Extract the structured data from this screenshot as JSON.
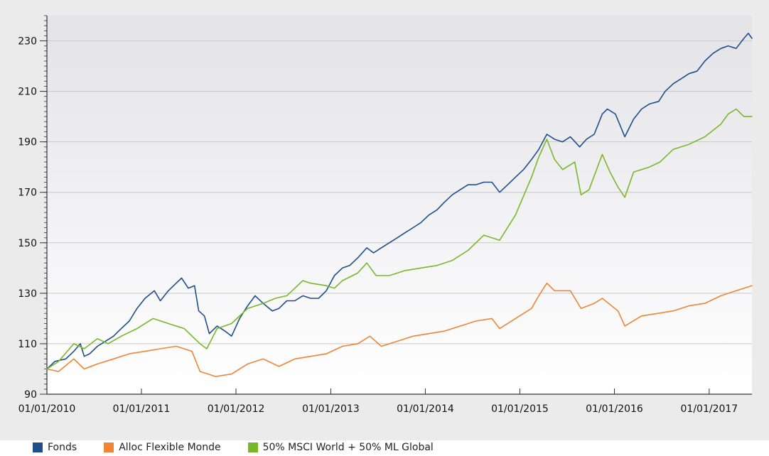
{
  "chart_data": {
    "type": "line",
    "title": "",
    "xlabel": "",
    "ylabel": "",
    "ylim": [
      90,
      240
    ],
    "y_ticks": [
      90,
      110,
      130,
      150,
      170,
      190,
      210,
      230
    ],
    "x_range": [
      "2010-01-01",
      "2017-06-15"
    ],
    "x_ticks": [
      "01/01/2010",
      "01/01/2011",
      "01/01/2012",
      "01/01/2013",
      "01/01/2014",
      "01/01/2015",
      "01/01/2016",
      "01/01/2017"
    ],
    "grid": true,
    "legend_position": "bottom-left",
    "series": [
      {
        "name": "Fonds",
        "color": "#1f4e8c",
        "points": [
          [
            "2010-01-01",
            100
          ],
          [
            "2010-02-01",
            103
          ],
          [
            "2010-03-15",
            104
          ],
          [
            "2010-04-15",
            107
          ],
          [
            "2010-05-10",
            110
          ],
          [
            "2010-05-25",
            105
          ],
          [
            "2010-06-15",
            106
          ],
          [
            "2010-07-15",
            109
          ],
          [
            "2010-08-15",
            111
          ],
          [
            "2010-09-15",
            113
          ],
          [
            "2010-10-15",
            116
          ],
          [
            "2010-11-15",
            119
          ],
          [
            "2010-12-15",
            124
          ],
          [
            "2011-01-15",
            128
          ],
          [
            "2011-02-20",
            131
          ],
          [
            "2011-03-15",
            127
          ],
          [
            "2011-04-15",
            131
          ],
          [
            "2011-05-15",
            134
          ],
          [
            "2011-06-05",
            136
          ],
          [
            "2011-07-01",
            132
          ],
          [
            "2011-07-25",
            133
          ],
          [
            "2011-08-10",
            123
          ],
          [
            "2011-09-01",
            121
          ],
          [
            "2011-09-20",
            114
          ],
          [
            "2011-10-20",
            117
          ],
          [
            "2011-11-20",
            115
          ],
          [
            "2011-12-15",
            113
          ],
          [
            "2012-01-15",
            120
          ],
          [
            "2012-02-15",
            125
          ],
          [
            "2012-03-15",
            129
          ],
          [
            "2012-04-15",
            126
          ],
          [
            "2012-05-20",
            123
          ],
          [
            "2012-06-15",
            124
          ],
          [
            "2012-07-15",
            127
          ],
          [
            "2012-08-15",
            127
          ],
          [
            "2012-09-15",
            129
          ],
          [
            "2012-10-15",
            128
          ],
          [
            "2012-11-15",
            128
          ],
          [
            "2012-12-15",
            131
          ],
          [
            "2013-01-15",
            137
          ],
          [
            "2013-02-15",
            140
          ],
          [
            "2013-03-15",
            141
          ],
          [
            "2013-04-15",
            144
          ],
          [
            "2013-05-20",
            148
          ],
          [
            "2013-06-15",
            146
          ],
          [
            "2013-07-15",
            148
          ],
          [
            "2013-08-15",
            150
          ],
          [
            "2013-09-15",
            152
          ],
          [
            "2013-10-15",
            154
          ],
          [
            "2013-11-15",
            156
          ],
          [
            "2013-12-15",
            158
          ],
          [
            "2014-01-15",
            161
          ],
          [
            "2014-02-15",
            163
          ],
          [
            "2014-03-15",
            166
          ],
          [
            "2014-04-15",
            169
          ],
          [
            "2014-05-15",
            171
          ],
          [
            "2014-06-15",
            173
          ],
          [
            "2014-07-15",
            173
          ],
          [
            "2014-08-15",
            174
          ],
          [
            "2014-09-15",
            174
          ],
          [
            "2014-10-15",
            170
          ],
          [
            "2014-11-15",
            173
          ],
          [
            "2014-12-15",
            176
          ],
          [
            "2015-01-15",
            179
          ],
          [
            "2015-02-15",
            183
          ],
          [
            "2015-03-15",
            187
          ],
          [
            "2015-04-15",
            193
          ],
          [
            "2015-05-15",
            191
          ],
          [
            "2015-06-15",
            190
          ],
          [
            "2015-07-15",
            192
          ],
          [
            "2015-08-20",
            188
          ],
          [
            "2015-09-15",
            191
          ],
          [
            "2015-10-15",
            193
          ],
          [
            "2015-11-15",
            201
          ],
          [
            "2015-12-05",
            203
          ],
          [
            "2016-01-05",
            201
          ],
          [
            "2016-02-10",
            192
          ],
          [
            "2016-03-15",
            199
          ],
          [
            "2016-04-15",
            203
          ],
          [
            "2016-05-15",
            205
          ],
          [
            "2016-06-20",
            206
          ],
          [
            "2016-07-15",
            210
          ],
          [
            "2016-08-15",
            213
          ],
          [
            "2016-09-15",
            215
          ],
          [
            "2016-10-15",
            217
          ],
          [
            "2016-11-15",
            218
          ],
          [
            "2016-12-15",
            222
          ],
          [
            "2017-01-15",
            225
          ],
          [
            "2017-02-15",
            227
          ],
          [
            "2017-03-15",
            228
          ],
          [
            "2017-04-15",
            227
          ],
          [
            "2017-05-15",
            231
          ],
          [
            "2017-06-01",
            233
          ],
          [
            "2017-06-15",
            231
          ]
        ]
      },
      {
        "name": "Alloc Flexible Monde",
        "color": "#ef8535",
        "points": [
          [
            "2010-01-01",
            100
          ],
          [
            "2010-02-15",
            99
          ],
          [
            "2010-04-15",
            104
          ],
          [
            "2010-05-25",
            100
          ],
          [
            "2010-07-15",
            102
          ],
          [
            "2010-09-15",
            104
          ],
          [
            "2010-11-15",
            106
          ],
          [
            "2011-01-15",
            107
          ],
          [
            "2011-03-15",
            108
          ],
          [
            "2011-05-15",
            109
          ],
          [
            "2011-07-15",
            107
          ],
          [
            "2011-08-15",
            99
          ],
          [
            "2011-10-15",
            97
          ],
          [
            "2011-12-15",
            98
          ],
          [
            "2012-02-15",
            102
          ],
          [
            "2012-04-15",
            104
          ],
          [
            "2012-06-15",
            101
          ],
          [
            "2012-08-15",
            104
          ],
          [
            "2012-10-15",
            105
          ],
          [
            "2012-12-15",
            106
          ],
          [
            "2013-02-15",
            109
          ],
          [
            "2013-04-15",
            110
          ],
          [
            "2013-06-01",
            113
          ],
          [
            "2013-07-15",
            109
          ],
          [
            "2013-09-15",
            111
          ],
          [
            "2013-11-15",
            113
          ],
          [
            "2014-01-15",
            114
          ],
          [
            "2014-03-15",
            115
          ],
          [
            "2014-05-15",
            117
          ],
          [
            "2014-07-15",
            119
          ],
          [
            "2014-09-15",
            120
          ],
          [
            "2014-10-15",
            116
          ],
          [
            "2014-12-15",
            120
          ],
          [
            "2015-02-15",
            124
          ],
          [
            "2015-03-15",
            129
          ],
          [
            "2015-04-15",
            134
          ],
          [
            "2015-05-15",
            131
          ],
          [
            "2015-07-15",
            131
          ],
          [
            "2015-08-25",
            124
          ],
          [
            "2015-10-15",
            126
          ],
          [
            "2015-11-15",
            128
          ],
          [
            "2016-01-15",
            123
          ],
          [
            "2016-02-10",
            117
          ],
          [
            "2016-04-15",
            121
          ],
          [
            "2016-06-15",
            122
          ],
          [
            "2016-08-15",
            123
          ],
          [
            "2016-10-15",
            125
          ],
          [
            "2016-12-15",
            126
          ],
          [
            "2017-02-15",
            129
          ],
          [
            "2017-04-15",
            131
          ],
          [
            "2017-06-15",
            133
          ]
        ]
      },
      {
        "name": "50% MSCI World + 50% ML Global",
        "color": "#77b82a",
        "points": [
          [
            "2010-01-01",
            100
          ],
          [
            "2010-02-15",
            103
          ],
          [
            "2010-04-15",
            110
          ],
          [
            "2010-05-25",
            108
          ],
          [
            "2010-07-15",
            112
          ],
          [
            "2010-08-25",
            110
          ],
          [
            "2010-10-15",
            113
          ],
          [
            "2010-12-15",
            116
          ],
          [
            "2011-02-15",
            120
          ],
          [
            "2011-04-15",
            118
          ],
          [
            "2011-06-15",
            116
          ],
          [
            "2011-08-15",
            110
          ],
          [
            "2011-09-10",
            108
          ],
          [
            "2011-10-20",
            116
          ],
          [
            "2011-12-15",
            118
          ],
          [
            "2012-02-15",
            124
          ],
          [
            "2012-04-15",
            126
          ],
          [
            "2012-06-01",
            128
          ],
          [
            "2012-07-15",
            129
          ],
          [
            "2012-09-15",
            135
          ],
          [
            "2012-10-15",
            134
          ],
          [
            "2012-12-15",
            133
          ],
          [
            "2013-01-15",
            132
          ],
          [
            "2013-02-15",
            135
          ],
          [
            "2013-04-15",
            138
          ],
          [
            "2013-05-20",
            142
          ],
          [
            "2013-06-25",
            137
          ],
          [
            "2013-08-15",
            137
          ],
          [
            "2013-10-15",
            139
          ],
          [
            "2013-12-15",
            140
          ],
          [
            "2014-02-15",
            141
          ],
          [
            "2014-04-15",
            143
          ],
          [
            "2014-06-15",
            147
          ],
          [
            "2014-08-15",
            153
          ],
          [
            "2014-10-15",
            151
          ],
          [
            "2014-12-15",
            161
          ],
          [
            "2015-02-15",
            176
          ],
          [
            "2015-03-15",
            184
          ],
          [
            "2015-04-15",
            191
          ],
          [
            "2015-05-15",
            183
          ],
          [
            "2015-06-15",
            179
          ],
          [
            "2015-08-01",
            182
          ],
          [
            "2015-08-25",
            169
          ],
          [
            "2015-09-25",
            171
          ],
          [
            "2015-11-15",
            185
          ],
          [
            "2015-12-15",
            178
          ],
          [
            "2016-01-15",
            172
          ],
          [
            "2016-02-10",
            168
          ],
          [
            "2016-03-15",
            178
          ],
          [
            "2016-05-15",
            180
          ],
          [
            "2016-06-25",
            182
          ],
          [
            "2016-08-15",
            187
          ],
          [
            "2016-10-15",
            189
          ],
          [
            "2016-12-15",
            192
          ],
          [
            "2017-02-15",
            197
          ],
          [
            "2017-03-15",
            201
          ],
          [
            "2017-04-15",
            203
          ],
          [
            "2017-05-15",
            200
          ],
          [
            "2017-06-15",
            200
          ]
        ]
      }
    ]
  }
}
